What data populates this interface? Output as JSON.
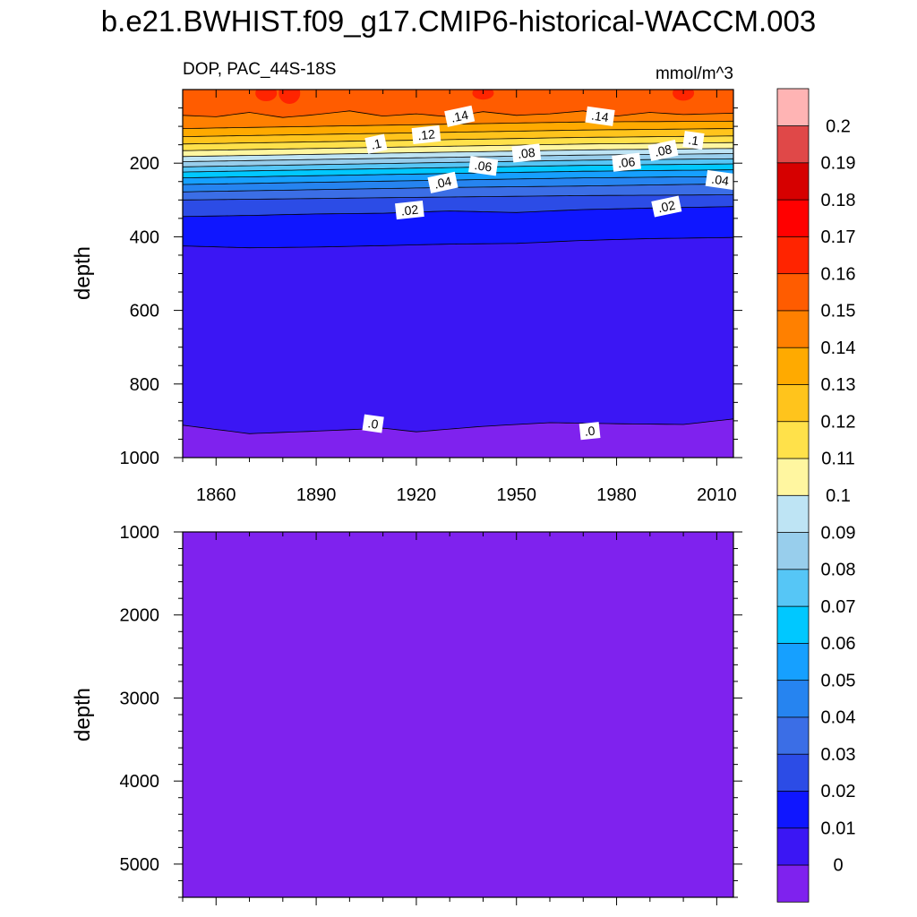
{
  "figure": {
    "title": "b.e21.BWHIST.f09_g17.CMIP6-historical-WACCM.003",
    "left_label": "DOP, PAC_44S-18S",
    "right_label": "mmol/m^3"
  },
  "chart_data": [
    {
      "type": "heatmap",
      "panel": "upper",
      "ylabel": "depth",
      "xlim": [
        1850,
        2015
      ],
      "ylim": [
        0,
        1000
      ],
      "y_inverted": true,
      "x_ticks": [
        1860,
        1890,
        1920,
        1950,
        1980,
        2010
      ],
      "x_tick_labels": [
        "1860",
        "1890",
        "1920",
        "1950",
        "1980",
        "2010"
      ],
      "y_ticks": [
        200,
        400,
        600,
        800,
        1000
      ],
      "y_tick_labels": [
        "200",
        "400",
        "600",
        "800",
        "1000"
      ],
      "contour_depths_by_level": [
        {
          "level": 0.0,
          "x": [
            1850,
            1870,
            1890,
            1910,
            1920,
            1940,
            1960,
            1980,
            2000,
            2015
          ],
          "depth": [
            912,
            935,
            928,
            920,
            930,
            915,
            905,
            908,
            910,
            895
          ]
        },
        {
          "level": 0.01,
          "x": [
            1850,
            1870,
            1890,
            1910,
            1930,
            1950,
            1970,
            1990,
            2015
          ],
          "depth": [
            425,
            430,
            428,
            424,
            420,
            418,
            410,
            405,
            402
          ]
        },
        {
          "level": 0.02,
          "x": [
            1850,
            1870,
            1890,
            1910,
            1930,
            1950,
            1970,
            1990,
            2015
          ],
          "depth": [
            345,
            342,
            338,
            336,
            330,
            334,
            326,
            322,
            318
          ]
        },
        {
          "level": 0.03,
          "x": [
            1850,
            1890,
            1930,
            1970,
            2015
          ],
          "depth": [
            300,
            296,
            292,
            288,
            286
          ]
        },
        {
          "level": 0.04,
          "x": [
            1850,
            1890,
            1930,
            1970,
            2015
          ],
          "depth": [
            278,
            272,
            266,
            262,
            256
          ]
        },
        {
          "level": 0.05,
          "x": [
            1850,
            1890,
            1930,
            1970,
            2015
          ],
          "depth": [
            258,
            252,
            246,
            240,
            236
          ]
        },
        {
          "level": 0.06,
          "x": [
            1850,
            1890,
            1930,
            1970,
            2015
          ],
          "depth": [
            240,
            234,
            228,
            222,
            218
          ]
        },
        {
          "level": 0.07,
          "x": [
            1850,
            1890,
            1930,
            1970,
            2015
          ],
          "depth": [
            224,
            218,
            212,
            206,
            202
          ]
        },
        {
          "level": 0.08,
          "x": [
            1850,
            1890,
            1930,
            1970,
            2015
          ],
          "depth": [
            210,
            204,
            198,
            192,
            188
          ]
        },
        {
          "level": 0.09,
          "x": [
            1850,
            1890,
            1930,
            1970,
            2015
          ],
          "depth": [
            196,
            190,
            184,
            178,
            174
          ]
        },
        {
          "level": 0.1,
          "x": [
            1850,
            1890,
            1930,
            1970,
            2015
          ],
          "depth": [
            182,
            176,
            170,
            164,
            160
          ]
        },
        {
          "level": 0.11,
          "x": [
            1850,
            1890,
            1930,
            1970,
            2015
          ],
          "depth": [
            166,
            160,
            154,
            148,
            144
          ]
        },
        {
          "level": 0.12,
          "x": [
            1850,
            1890,
            1930,
            1970,
            2015
          ],
          "depth": [
            148,
            142,
            136,
            130,
            126
          ]
        },
        {
          "level": 0.13,
          "x": [
            1850,
            1890,
            1930,
            1970,
            2015
          ],
          "depth": [
            128,
            122,
            116,
            110,
            106
          ]
        },
        {
          "level": 0.14,
          "x": [
            1850,
            1890,
            1930,
            1970,
            2015
          ],
          "depth": [
            106,
            100,
            94,
            88,
            86
          ]
        },
        {
          "level": 0.15,
          "x": [
            1850,
            1860,
            1870,
            1880,
            1890,
            1900,
            1910,
            1920,
            1930,
            1940,
            1950,
            1960,
            1970,
            1980,
            1990,
            2000,
            2015
          ],
          "depth": [
            70,
            74,
            62,
            76,
            68,
            58,
            72,
            66,
            74,
            60,
            70,
            66,
            58,
            72,
            62,
            68,
            64
          ]
        }
      ],
      "contour_labels": [
        {
          "text": ".14",
          "x": 1933,
          "depth": 75
        },
        {
          "text": ".14",
          "x": 1975,
          "depth": 75
        },
        {
          "text": ".12",
          "x": 1923,
          "depth": 125
        },
        {
          "text": ".1",
          "x": 1908,
          "depth": 150
        },
        {
          "text": ".1",
          "x": 2003,
          "depth": 140
        },
        {
          "text": ".08",
          "x": 1953,
          "depth": 175
        },
        {
          "text": ".08",
          "x": 1994,
          "depth": 168
        },
        {
          "text": ".06",
          "x": 1940,
          "depth": 210
        },
        {
          "text": ".06",
          "x": 1983,
          "depth": 200
        },
        {
          "text": ".04",
          "x": 1928,
          "depth": 255
        },
        {
          "text": ".04",
          "x": 2011,
          "depth": 248
        },
        {
          "text": ".02",
          "x": 1918,
          "depth": 330
        },
        {
          "text": ".02",
          "x": 1995,
          "depth": 320
        },
        {
          "text": ".0",
          "x": 1907,
          "depth": 910
        },
        {
          "text": ".0",
          "x": 1972,
          "depth": 930
        }
      ]
    },
    {
      "type": "heatmap",
      "panel": "lower",
      "ylabel": "depth",
      "xlim": [
        1850,
        2015
      ],
      "ylim": [
        1000,
        5400
      ],
      "y_inverted": true,
      "y_ticks": [
        1000,
        2000,
        3000,
        4000,
        5000
      ],
      "y_tick_labels": [
        "1000",
        "2000",
        "3000",
        "4000",
        "5000"
      ],
      "uniform_level": 0.0
    }
  ],
  "colorbar": {
    "levels": [
      "0",
      "0.01",
      "0.02",
      "0.03",
      "0.04",
      "0.05",
      "0.06",
      "0.07",
      "0.08",
      "0.09",
      "0.1",
      "0.11",
      "0.12",
      "0.13",
      "0.14",
      "0.15",
      "0.16",
      "0.17",
      "0.18",
      "0.19",
      "0.2"
    ],
    "colors": [
      "#7f22ee",
      "#3b16f4",
      "#0f16ff",
      "#2c4ce6",
      "#3b6ee6",
      "#2684f0",
      "#16a0ff",
      "#00c8ff",
      "#56c6f6",
      "#98ceec",
      "#bee4f4",
      "#fff6a0",
      "#ffe14a",
      "#ffc41c",
      "#ffaa00",
      "#ff8000",
      "#ff5c00",
      "#ff2400",
      "#ff0000",
      "#d60000",
      "#e04848",
      "#ffb4b4"
    ]
  }
}
